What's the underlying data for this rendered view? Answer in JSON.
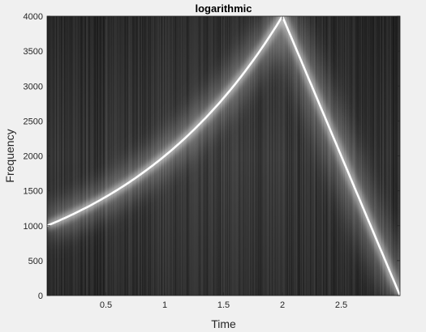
{
  "chart_data": {
    "type": "heatmap",
    "title": "logarithmic",
    "xlabel": "Time",
    "ylabel": "Frequency",
    "xlim": [
      0,
      3
    ],
    "ylim": [
      0,
      4000
    ],
    "xticks": [
      0.5,
      1,
      1.5,
      2,
      2.5
    ],
    "xtick_labels": [
      "0.5",
      "1",
      "1.5",
      "2",
      "2.5"
    ],
    "yticks": [
      0,
      500,
      1000,
      1500,
      2000,
      2500,
      3000,
      3500,
      4000
    ],
    "ytick_labels": [
      "0",
      "500",
      "1000",
      "1500",
      "2000",
      "2500",
      "3000",
      "3500",
      "4000"
    ],
    "colormap": "gray",
    "grid": false,
    "ridge": [
      {
        "t": 0.0,
        "f": 1000
      },
      {
        "t": 0.5,
        "f": 1414
      },
      {
        "t": 1.0,
        "f": 2000
      },
      {
        "t": 1.5,
        "f": 2828
      },
      {
        "t": 2.0,
        "f": 4000
      },
      {
        "t": 2.5,
        "f": 2000
      },
      {
        "t": 3.0,
        "f": 0
      }
    ],
    "ridge_color": "#ffffff",
    "background_color": "#2a2a2a"
  }
}
